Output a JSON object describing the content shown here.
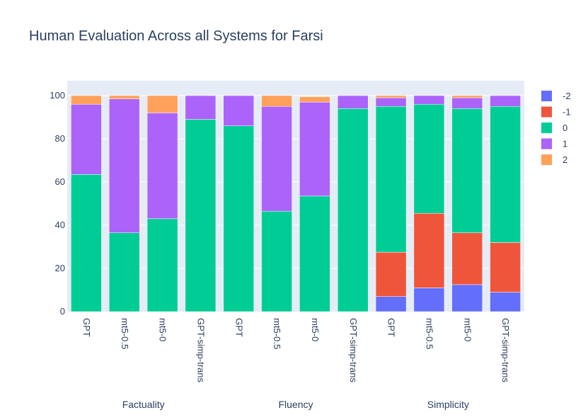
{
  "chart_data": {
    "type": "bar",
    "barmode": "stack",
    "title": "Human Evaluation Across all Systems for Farsi",
    "xlabel": "",
    "ylabel": "",
    "ylim": [
      0,
      100
    ],
    "yticks": [
      0,
      20,
      40,
      60,
      80,
      100
    ],
    "grid": true,
    "legend_position": "right",
    "groups": [
      {
        "name": "Factuality",
        "categories": [
          "GPT",
          "mt5-0.5",
          "mt5-0",
          "GPT-simp-trans"
        ]
      },
      {
        "name": "Fluency",
        "categories": [
          "GPT",
          "mt5-0.5",
          "mt5-0",
          "GPT-simp-trans"
        ]
      },
      {
        "name": "Simplicity",
        "categories": [
          "GPT",
          "mt5-0.5",
          "mt5-0",
          "GPT-simp-trans"
        ]
      }
    ],
    "categories": [
      "GPT",
      "mt5-0.5",
      "mt5-0",
      "GPT-simp-trans",
      "GPT",
      "mt5-0.5",
      "mt5-0",
      "GPT-simp-trans",
      "GPT",
      "mt5-0.5",
      "mt5-0",
      "GPT-simp-trans"
    ],
    "series": [
      {
        "name": "-2",
        "color": "#636efa",
        "values": [
          0,
          0,
          0,
          0,
          0,
          0,
          0,
          0,
          7,
          11,
          12.5,
          9
        ]
      },
      {
        "name": "-1",
        "color": "#ef553b",
        "values": [
          0,
          0,
          0,
          0,
          0,
          0,
          0,
          0,
          20.5,
          34.5,
          24,
          23
        ]
      },
      {
        "name": "0",
        "color": "#00cc96",
        "values": [
          63.5,
          36.5,
          43,
          89,
          86,
          46.5,
          53.5,
          94,
          67.5,
          50.5,
          57.5,
          63
        ]
      },
      {
        "name": "1",
        "color": "#ab63fa",
        "values": [
          32.5,
          62,
          49,
          11,
          14,
          48.5,
          43.5,
          6,
          4,
          4,
          5,
          5
        ]
      },
      {
        "name": "2",
        "color": "#ffa15a",
        "values": [
          4,
          1.5,
          8,
          0,
          0,
          5,
          2.5,
          0,
          1,
          0,
          1,
          0
        ]
      }
    ]
  }
}
